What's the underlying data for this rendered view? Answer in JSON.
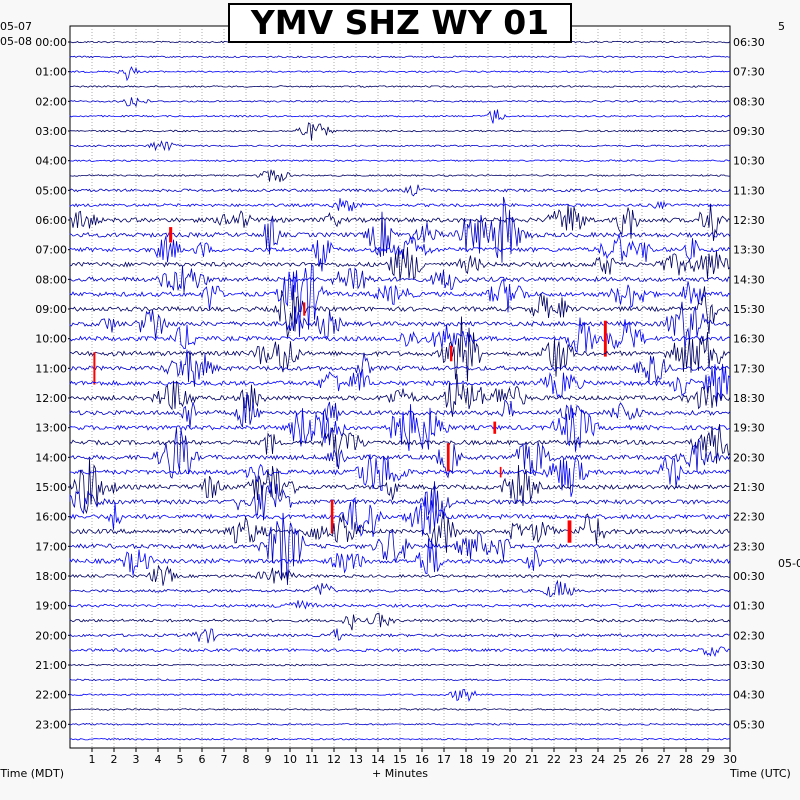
{
  "title": "YMV SHZ WY 01",
  "colors": {
    "trace_colors": [
      "#000066",
      "#0000cc",
      "#0000ff"
    ],
    "clip": "#ff0000",
    "background": "#ffffff",
    "page": "#f8f8f8"
  },
  "chart_data": {
    "type": "line",
    "title": "YMV SHZ WY 01",
    "xlabel": "+ Minutes",
    "ylabel_left": "Time (MDT)",
    "ylabel_right": "Time (UTC)",
    "xlim": [
      0,
      30
    ],
    "x_ticks": [
      "1",
      "2",
      "3",
      "4",
      "5",
      "6",
      "7",
      "8",
      "9",
      "10",
      "11",
      "12",
      "13",
      "14",
      "15",
      "16",
      "17",
      "18",
      "19",
      "20",
      "21",
      "22",
      "23",
      "24",
      "25",
      "26",
      "27",
      "28",
      "29",
      "30"
    ],
    "date_labels_left": [
      "05-07",
      "05-08"
    ],
    "date_label_right": "05-0",
    "left_times": [
      "00:00",
      "01:00",
      "02:00",
      "03:00",
      "04:00",
      "05:00",
      "06:00",
      "07:00",
      "08:00",
      "09:00",
      "10:00",
      "11:00",
      "12:00",
      "13:00",
      "14:00",
      "15:00",
      "16:00",
      "17:00",
      "18:00",
      "19:00",
      "20:00",
      "21:00",
      "22:00",
      "23:00"
    ],
    "right_times": [
      "06:30",
      "07:30",
      "08:30",
      "09:30",
      "10:30",
      "11:30",
      "12:30",
      "13:30",
      "14:30",
      "15:30",
      "16:30",
      "17:30",
      "18:30",
      "19:30",
      "20:30",
      "21:30",
      "22:30",
      "23:30",
      "00:30",
      "01:30",
      "02:30",
      "03:30",
      "04:30",
      "05:30"
    ],
    "rows_per_hour": 2,
    "grid": true,
    "activity_hours": {
      "quiet": [
        0,
        1,
        2,
        3,
        4,
        21,
        22,
        23
      ],
      "moderate": [
        5,
        18,
        19,
        20
      ],
      "heavy": [
        6,
        7,
        8,
        9,
        10,
        11,
        12,
        13,
        14,
        15,
        16,
        17
      ]
    }
  }
}
